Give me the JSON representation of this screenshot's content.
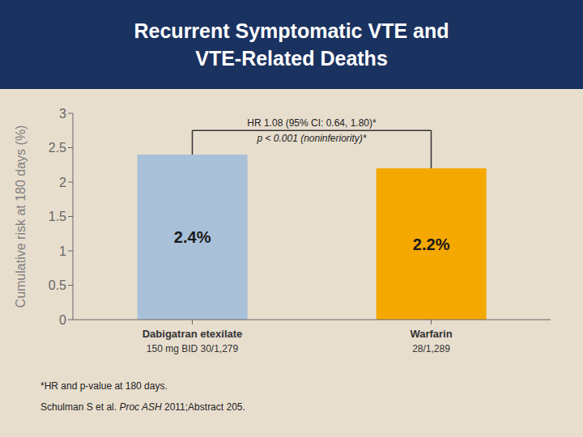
{
  "chart_data": {
    "type": "bar",
    "title": "Recurrent Symptomatic VTE and\nVTE-Related Deaths",
    "categories": [
      "Dabigatran etexilate",
      "Warfarin"
    ],
    "category_sublabels": [
      "150 mg BID 30/1,279",
      "28/1,289"
    ],
    "values": [
      2.4,
      2.2
    ],
    "value_labels": [
      "2.4%",
      "2.2%"
    ],
    "data_labels": true,
    "colors": [
      "#a8c0d8",
      "#f5a800"
    ],
    "ylabel": "Cumulative risk at 180 days (%)",
    "ylim": [
      0,
      3.0
    ],
    "yticks": [
      0,
      0.5,
      1.0,
      1.5,
      2.0,
      2.5,
      3.0
    ],
    "grid": false,
    "annotations": [
      "HR 1.08 (95% CI: 0.64, 1.80)*",
      "p < 0.001 (noninferiority)*"
    ],
    "footnotes": [
      [
        "*HR and p-value at 180 days."
      ],
      [
        "Schulman S et al. ",
        "Proc ASH",
        " 2011;Abstract 205."
      ]
    ]
  }
}
